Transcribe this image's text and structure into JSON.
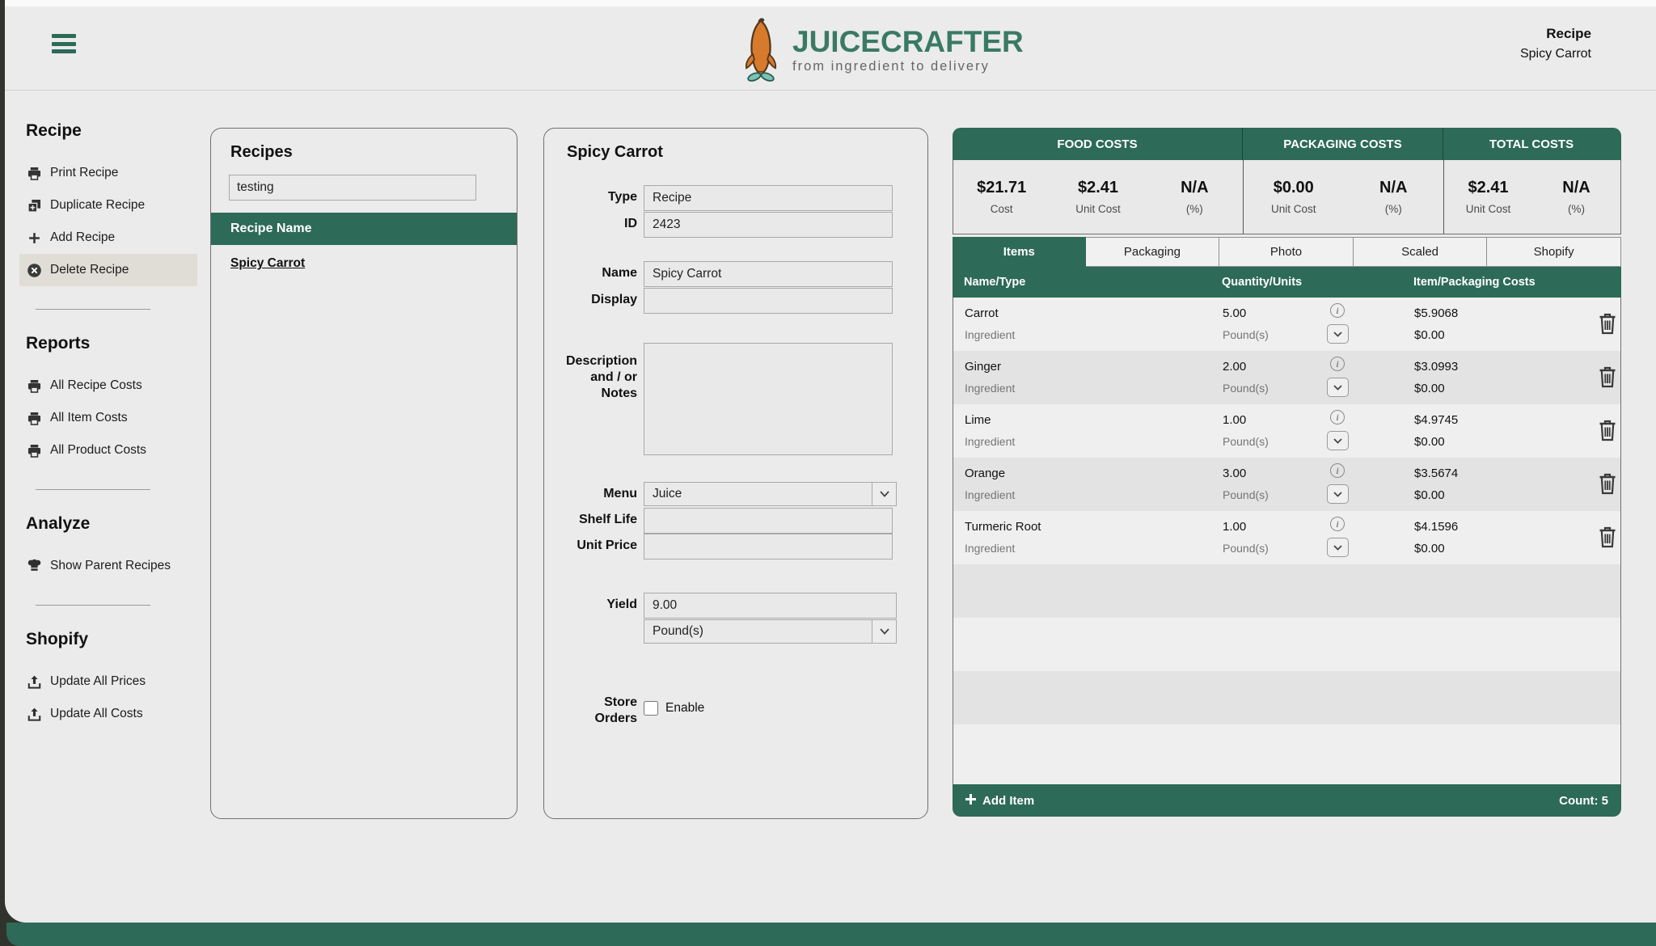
{
  "colors": {
    "accent_green": "#2d6a58",
    "logo_green": "#3a7a65",
    "carrot_orange": "#d87a2b",
    "leaf_teal": "#79c4b4"
  },
  "header": {
    "logo_title": "JuiceCrafter",
    "logo_tagline": "from ingredient to delivery",
    "context_label": "Recipe",
    "context_value": "Spicy Carrot"
  },
  "sidebar": {
    "sections": [
      {
        "title": "Recipe",
        "items": [
          {
            "icon": "printer",
            "label": "Print Recipe"
          },
          {
            "icon": "duplicate",
            "label": "Duplicate Recipe"
          },
          {
            "icon": "plus",
            "label": "Add Recipe"
          },
          {
            "icon": "delete-circle",
            "label": "Delete Recipe",
            "highlighted": true
          }
        ]
      },
      {
        "title": "Reports",
        "items": [
          {
            "icon": "printer",
            "label": "All Recipe Costs"
          },
          {
            "icon": "printer",
            "label": "All Item Costs"
          },
          {
            "icon": "printer",
            "label": "All Product Costs"
          }
        ]
      },
      {
        "title": "Analyze",
        "items": [
          {
            "icon": "chef-hat",
            "label": "Show Parent Recipes"
          }
        ]
      },
      {
        "title": "Shopify",
        "items": [
          {
            "icon": "upload",
            "label": "Update All Prices"
          },
          {
            "icon": "upload",
            "label": "Update All Costs"
          }
        ]
      }
    ]
  },
  "recipes": {
    "title": "Recipes",
    "search_value": "testing",
    "column_header": "Recipe Name",
    "rows": [
      "Spicy Carrot"
    ]
  },
  "form": {
    "title": "Spicy Carrot",
    "type_label": "Type",
    "type_value": "Recipe",
    "id_label": "ID",
    "id_value": "2423",
    "name_label": "Name",
    "name_value": "Spicy Carrot",
    "display_label": "Display",
    "display_value": "",
    "desc_label": "Description\nand / or\nNotes",
    "desc_value": "",
    "menu_label": "Menu",
    "menu_value": "Juice",
    "shelf_label": "Shelf Life",
    "shelf_value": "",
    "unit_price_label": "Unit Price",
    "unit_price_value": "",
    "yield_label": "Yield",
    "yield_value": "9.00",
    "yield_unit": "Pound(s)",
    "store_label": "Store\nOrders",
    "enable_label": "Enable",
    "enable_checked": false
  },
  "costs": {
    "summary": [
      {
        "title": "FOOD COSTS",
        "cells": [
          {
            "value": "$21.71",
            "label": "Cost"
          },
          {
            "value": "$2.41",
            "label": "Unit Cost"
          },
          {
            "value": "N/A",
            "label": "(%)"
          }
        ]
      },
      {
        "title": "PACKAGING COSTS",
        "cells": [
          {
            "value": "$0.00",
            "label": "Unit Cost"
          },
          {
            "value": "N/A",
            "label": "(%)"
          }
        ]
      },
      {
        "title": "TOTAL COSTS",
        "cells": [
          {
            "value": "$2.41",
            "label": "Unit Cost"
          },
          {
            "value": "N/A",
            "label": "(%)"
          }
        ]
      }
    ],
    "tabs": [
      {
        "label": "Items",
        "active": true
      },
      {
        "label": "Packaging",
        "active": false
      },
      {
        "label": "Photo",
        "active": false
      },
      {
        "label": "Scaled",
        "active": false
      },
      {
        "label": "Shopify",
        "active": false
      }
    ],
    "columns": [
      "Name/Type",
      "Quantity/Units",
      "Item/Packaging Costs"
    ],
    "items": [
      {
        "name": "Carrot",
        "type": "Ingredient",
        "qty": "5.00",
        "unit": "Pound(s)",
        "item_cost": "$5.9068",
        "pkg_cost": "$0.00"
      },
      {
        "name": "Ginger",
        "type": "Ingredient",
        "qty": "2.00",
        "unit": "Pound(s)",
        "item_cost": "$3.0993",
        "pkg_cost": "$0.00"
      },
      {
        "name": "Lime",
        "type": "Ingredient",
        "qty": "1.00",
        "unit": "Pound(s)",
        "item_cost": "$4.9745",
        "pkg_cost": "$0.00"
      },
      {
        "name": "Orange",
        "type": "Ingredient",
        "qty": "3.00",
        "unit": "Pound(s)",
        "item_cost": "$3.5674",
        "pkg_cost": "$0.00"
      },
      {
        "name": "Turmeric Root",
        "type": "Ingredient",
        "qty": "1.00",
        "unit": "Pound(s)",
        "item_cost": "$4.1596",
        "pkg_cost": "$0.00"
      }
    ],
    "footer": {
      "add_label": "Add Item",
      "count_label": "Count: 5"
    }
  }
}
